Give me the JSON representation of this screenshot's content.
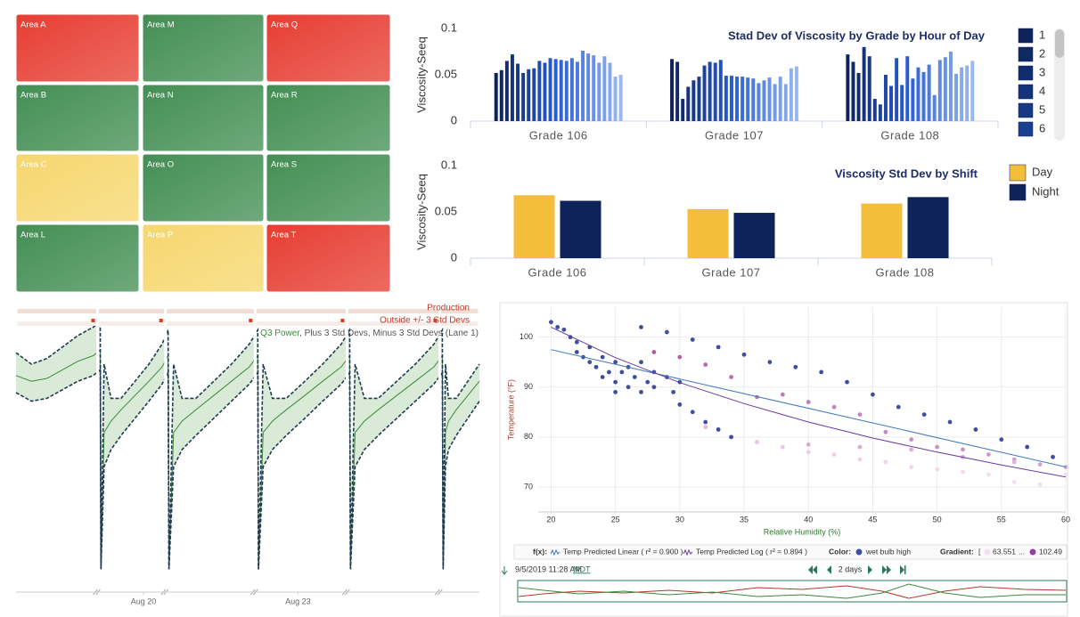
{
  "tiles": [
    {
      "label": "Area A",
      "color": "#e6392e"
    },
    {
      "label": "Area M",
      "color": "#3f8c50"
    },
    {
      "label": "Area Q",
      "color": "#e6392e"
    },
    {
      "label": "Area B",
      "color": "#3f8c50"
    },
    {
      "label": "Area N",
      "color": "#3f8c50"
    },
    {
      "label": "Area R",
      "color": "#3f8c50"
    },
    {
      "label": "Area C",
      "color": "#f6d66b"
    },
    {
      "label": "Area O",
      "color": "#3f8c50"
    },
    {
      "label": "Area S",
      "color": "#3f8c50"
    },
    {
      "label": "Area L",
      "color": "#3f8c50"
    },
    {
      "label": "Area P",
      "color": "#f6d66b"
    },
    {
      "label": "Area T",
      "color": "#e6392e"
    }
  ],
  "chart_data": [
    {
      "type": "bar",
      "title": "Stad Dev of Viscosity by Grade by Hour of Day",
      "y_label": "Viscosity-Seeq",
      "categories": [
        "Grade 106",
        "Grade 107",
        "Grade 108"
      ],
      "ylim": [
        0,
        0.1
      ],
      "yticks": [
        0,
        0.05,
        0.1
      ],
      "colors": [
        "#0d2359",
        "#2a5fd6",
        "#9ab8f0"
      ],
      "series": [
        {
          "name": "1",
          "values": [
            0.052,
            0.067,
            0.072
          ]
        },
        {
          "name": "2",
          "values": [
            0.055,
            0.064,
            0.064
          ]
        },
        {
          "name": "3",
          "values": [
            0.065,
            0.024,
            0.052
          ]
        },
        {
          "name": "4",
          "values": [
            0.072,
            0.037,
            0.08
          ]
        },
        {
          "name": "5",
          "values": [
            0.062,
            0.044,
            0.07
          ]
        },
        {
          "name": "6",
          "values": [
            0.052,
            0.048,
            0.024
          ]
        },
        {
          "values": [
            0.056,
            0.06,
            0.018
          ]
        },
        {
          "values": [
            0.057,
            0.064,
            0.05
          ]
        },
        {
          "values": [
            0.065,
            0.063,
            0.038
          ]
        },
        {
          "values": [
            0.063,
            0.066,
            0.068
          ]
        },
        {
          "values": [
            0.068,
            0.049,
            0.039
          ]
        },
        {
          "values": [
            0.067,
            0.049,
            0.07
          ]
        },
        {
          "values": [
            0.066,
            0.048,
            0.046
          ]
        },
        {
          "values": [
            0.065,
            0.048,
            0.058
          ]
        },
        {
          "values": [
            0.068,
            0.047,
            0.053
          ]
        },
        {
          "values": [
            0.064,
            0.046,
            0.061
          ]
        },
        {
          "values": [
            0.076,
            0.041,
            0.028
          ]
        },
        {
          "values": [
            0.073,
            0.044,
            0.066
          ]
        },
        {
          "values": [
            0.071,
            0.047,
            0.069
          ]
        },
        {
          "values": [
            0.063,
            0.04,
            0.075
          ]
        },
        {
          "values": [
            0.07,
            0.048,
            0.051
          ]
        },
        {
          "values": [
            0.063,
            0.04,
            0.058
          ]
        },
        {
          "values": [
            0.048,
            0.057,
            0.06
          ]
        },
        {
          "values": [
            0.05,
            0.059,
            0.065
          ]
        }
      ]
    },
    {
      "type": "bar",
      "title": "Viscosity Std Dev by Shift",
      "y_label": "Viscosity-Seeq",
      "categories": [
        "Grade 106",
        "Grade 107",
        "Grade 108"
      ],
      "ylim": [
        0,
        0.1
      ],
      "yticks": [
        0,
        0.05,
        0.1
      ],
      "series": [
        {
          "name": "Day",
          "color": "#f5bd3c",
          "values": [
            0.068,
            0.053,
            0.059
          ]
        },
        {
          "name": "Night",
          "color": "#0d2359",
          "values": [
            0.062,
            0.049,
            0.066
          ]
        }
      ]
    },
    {
      "type": "band",
      "lanes": [
        "Production",
        "Outside +/- 3 Std Devs"
      ],
      "legend_separator": ", ",
      "legend_suffix": "(Lane 1)",
      "band_color": "#d9ead6",
      "xlim": [
        0,
        60
      ],
      "ylim": [
        0,
        100
      ],
      "xticks": [
        {
          "value": 16.5,
          "label": "Aug 20"
        },
        {
          "value": 36.5,
          "label": "Aug 23"
        }
      ],
      "x": [
        0,
        2,
        4,
        6,
        8,
        10,
        10.9,
        11,
        11.4,
        12.3,
        13.6,
        15.4,
        17.2,
        18.9,
        19.7,
        19.8,
        20.4,
        21.5,
        23.3,
        25.6,
        27.9,
        30.2,
        31.3,
        31.4,
        32,
        33.2,
        35,
        37.4,
        39.7,
        42.1,
        43.2,
        43.3,
        43.9,
        45.1,
        46.9,
        49.3,
        51.7,
        54.1,
        55.2,
        55.3,
        55.6,
        56,
        57,
        58.5,
        60
      ],
      "series": [
        {
          "name": "Q3 Power",
          "color": "#3d8a3d",
          "values": [
            76,
            74,
            75,
            78,
            81,
            83,
            85,
            8,
            56,
            60,
            64,
            69,
            74,
            79,
            83,
            8,
            56,
            60,
            64,
            69,
            74,
            79,
            83,
            8,
            56,
            60,
            64,
            69,
            74,
            79,
            83,
            8,
            56,
            60,
            64,
            69,
            74,
            79,
            83,
            8,
            56,
            60,
            64,
            69,
            74
          ]
        },
        {
          "name": "Plus 3 Std Devs",
          "color": "#1f3a55",
          "dashed": true,
          "values": [
            84,
            80,
            82,
            86,
            90,
            93,
            95,
            8,
            80,
            68,
            68,
            74,
            80,
            87,
            92,
            8,
            80,
            68,
            68,
            74,
            80,
            87,
            92,
            8,
            80,
            68,
            68,
            74,
            80,
            87,
            92,
            8,
            80,
            68,
            68,
            74,
            80,
            87,
            92,
            8,
            80,
            68,
            68,
            74,
            80
          ]
        },
        {
          "name": "Minus 3 Std Devs",
          "color": "#1f3a55",
          "dashed": true,
          "values": [
            70,
            67,
            68,
            71,
            74,
            76,
            78,
            8,
            44,
            50,
            55,
            61,
            67,
            73,
            77,
            8,
            44,
            50,
            55,
            61,
            67,
            73,
            77,
            8,
            44,
            50,
            55,
            61,
            67,
            73,
            77,
            8,
            44,
            50,
            55,
            61,
            67,
            73,
            77,
            8,
            44,
            50,
            55,
            61,
            67
          ]
        }
      ]
    },
    {
      "type": "scatter",
      "x_label": "Relative Humidity (%)",
      "y_label": "Temperature (°F)",
      "xlim": [
        19,
        60
      ],
      "ylim": [
        65,
        106
      ],
      "xticks": [
        20,
        25,
        30,
        35,
        40,
        45,
        50,
        55,
        60
      ],
      "yticks": [
        70,
        80,
        90,
        100
      ],
      "grid": true,
      "fx_label": "f(x):",
      "color_label": "Color:",
      "series": [
        {
          "name": "wet bulb high",
          "color": "#3d4f9e",
          "x": [
            20,
            20.5,
            21,
            21.5,
            22,
            22,
            22.5,
            23,
            23,
            23.5,
            24,
            24,
            24.5,
            25,
            25,
            25,
            25.5,
            26,
            26,
            26.5,
            27,
            27,
            27.5,
            28,
            28,
            29,
            29.5,
            30,
            27,
            29,
            31,
            33,
            35,
            37,
            39,
            41,
            43,
            45,
            47,
            49,
            51,
            53,
            55,
            57,
            59,
            30,
            31,
            32,
            33,
            34
          ],
          "values": [
            103,
            102,
            101.5,
            100,
            99,
            97,
            96,
            98,
            95,
            94,
            96,
            92,
            93,
            95,
            91,
            89,
            93,
            94,
            90,
            92,
            95,
            89,
            91,
            93,
            90,
            92,
            89,
            91,
            102,
            101,
            99.5,
            98,
            96.5,
            95,
            94,
            93,
            91,
            88.5,
            86,
            84.5,
            83,
            81.5,
            79.5,
            78,
            76,
            86.5,
            85,
            83,
            81.5,
            80
          ]
        }
      ],
      "gradient": {
        "label": "Gradient:",
        "open": "[",
        "separator": "...",
        "min": 63.551,
        "max": 102.49,
        "colors": [
          "#f4dff1",
          "#9a3c9a"
        ],
        "x": [
          28,
          30,
          32,
          34,
          36,
          38,
          40,
          42,
          44,
          46,
          48,
          50,
          52,
          54,
          56,
          58,
          60,
          32,
          34,
          36,
          38,
          40,
          42,
          44,
          46,
          48,
          50,
          52,
          54,
          56,
          58,
          60,
          40,
          44,
          48,
          52,
          56
        ],
        "values": [
          97,
          96,
          94.5,
          92,
          88,
          88.5,
          87,
          86,
          84.5,
          81,
          79.5,
          78,
          77.5,
          76.5,
          75.5,
          74.5,
          74,
          82,
          80,
          79,
          78,
          77,
          76.5,
          75.5,
          75,
          74,
          73.5,
          73,
          72.5,
          71,
          70.5,
          72.5,
          78.5,
          78,
          77.5,
          76,
          75
        ],
        "c": [
          95,
          93,
          92,
          90,
          88,
          88,
          87,
          86,
          85,
          84,
          83,
          82,
          81,
          80,
          79,
          78,
          77,
          72,
          71,
          70,
          69,
          68,
          67,
          67,
          66,
          66,
          65,
          65,
          64,
          64,
          63.6,
          64,
          76,
          76,
          75,
          75,
          74
        ]
      },
      "trends": [
        {
          "name": "Temp Predicted Linear ( r² = 0.900 )",
          "color": "#3f78c0",
          "x": [
            20,
            60
          ],
          "values": [
            97.5,
            74
          ]
        },
        {
          "name": "Temp Predicted Log ( r² = 0.894 )",
          "color": "#6a3aa3",
          "x": [
            20,
            25,
            30,
            35,
            40,
            45,
            50,
            55,
            60
          ],
          "values": [
            102,
            95.9,
            90.9,
            86.7,
            83,
            79.8,
            77,
            74.4,
            72
          ]
        }
      ]
    }
  ],
  "toolbar": {
    "timestamp": "9/5/2019 11:28 AM",
    "timezone": "MDT",
    "range": "2 days"
  }
}
